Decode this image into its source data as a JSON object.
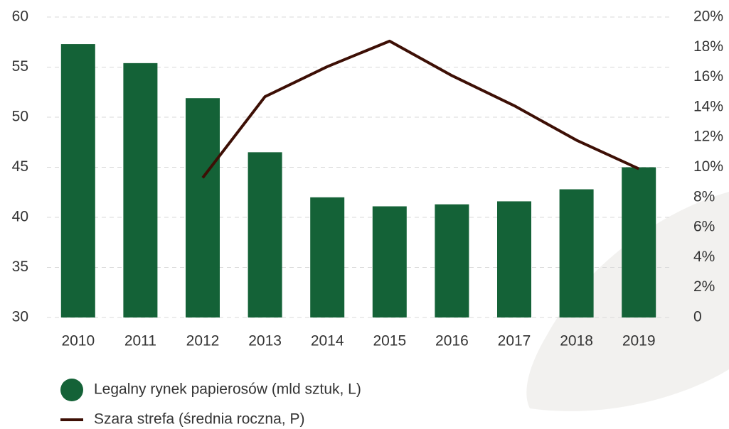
{
  "chart_data": {
    "type": "bar",
    "categories": [
      "2010",
      "2011",
      "2012",
      "2013",
      "2014",
      "2015",
      "2016",
      "2017",
      "2018",
      "2019"
    ],
    "series": [
      {
        "name": "Legalny rynek papierosów (mld sztuk, L)",
        "type": "bar",
        "color": "#146237",
        "values": [
          57.3,
          55.4,
          51.9,
          46.5,
          42.0,
          41.1,
          41.3,
          41.6,
          42.8,
          45.0
        ]
      },
      {
        "name": "Szara strefa (średnia roczna, P)",
        "type": "line",
        "axis": "y2",
        "color": "#3d0f05",
        "values": [
          null,
          null,
          9.3,
          14.7,
          16.7,
          18.4,
          16.1,
          14.1,
          11.8,
          9.9
        ]
      }
    ],
    "ylim": [
      30,
      60
    ],
    "yticks": [
      30,
      35,
      40,
      45,
      50,
      55,
      60
    ],
    "y2lim": [
      0,
      20
    ],
    "y2ticks": [
      0,
      {
        "value": 2,
        "label": "2%"
      },
      {
        "value": 4,
        "label": "4%"
      },
      {
        "value": 6,
        "label": "6%"
      },
      {
        "value": 8,
        "label": "8%"
      },
      {
        "value": 10,
        "label": "10%"
      },
      {
        "value": 12,
        "label": "12%"
      },
      {
        "value": 14,
        "label": "14%"
      },
      {
        "value": 16,
        "label": "16%"
      },
      {
        "value": 18,
        "label": "18%"
      },
      {
        "value": 20,
        "label": "20%"
      }
    ],
    "grid": true
  }
}
